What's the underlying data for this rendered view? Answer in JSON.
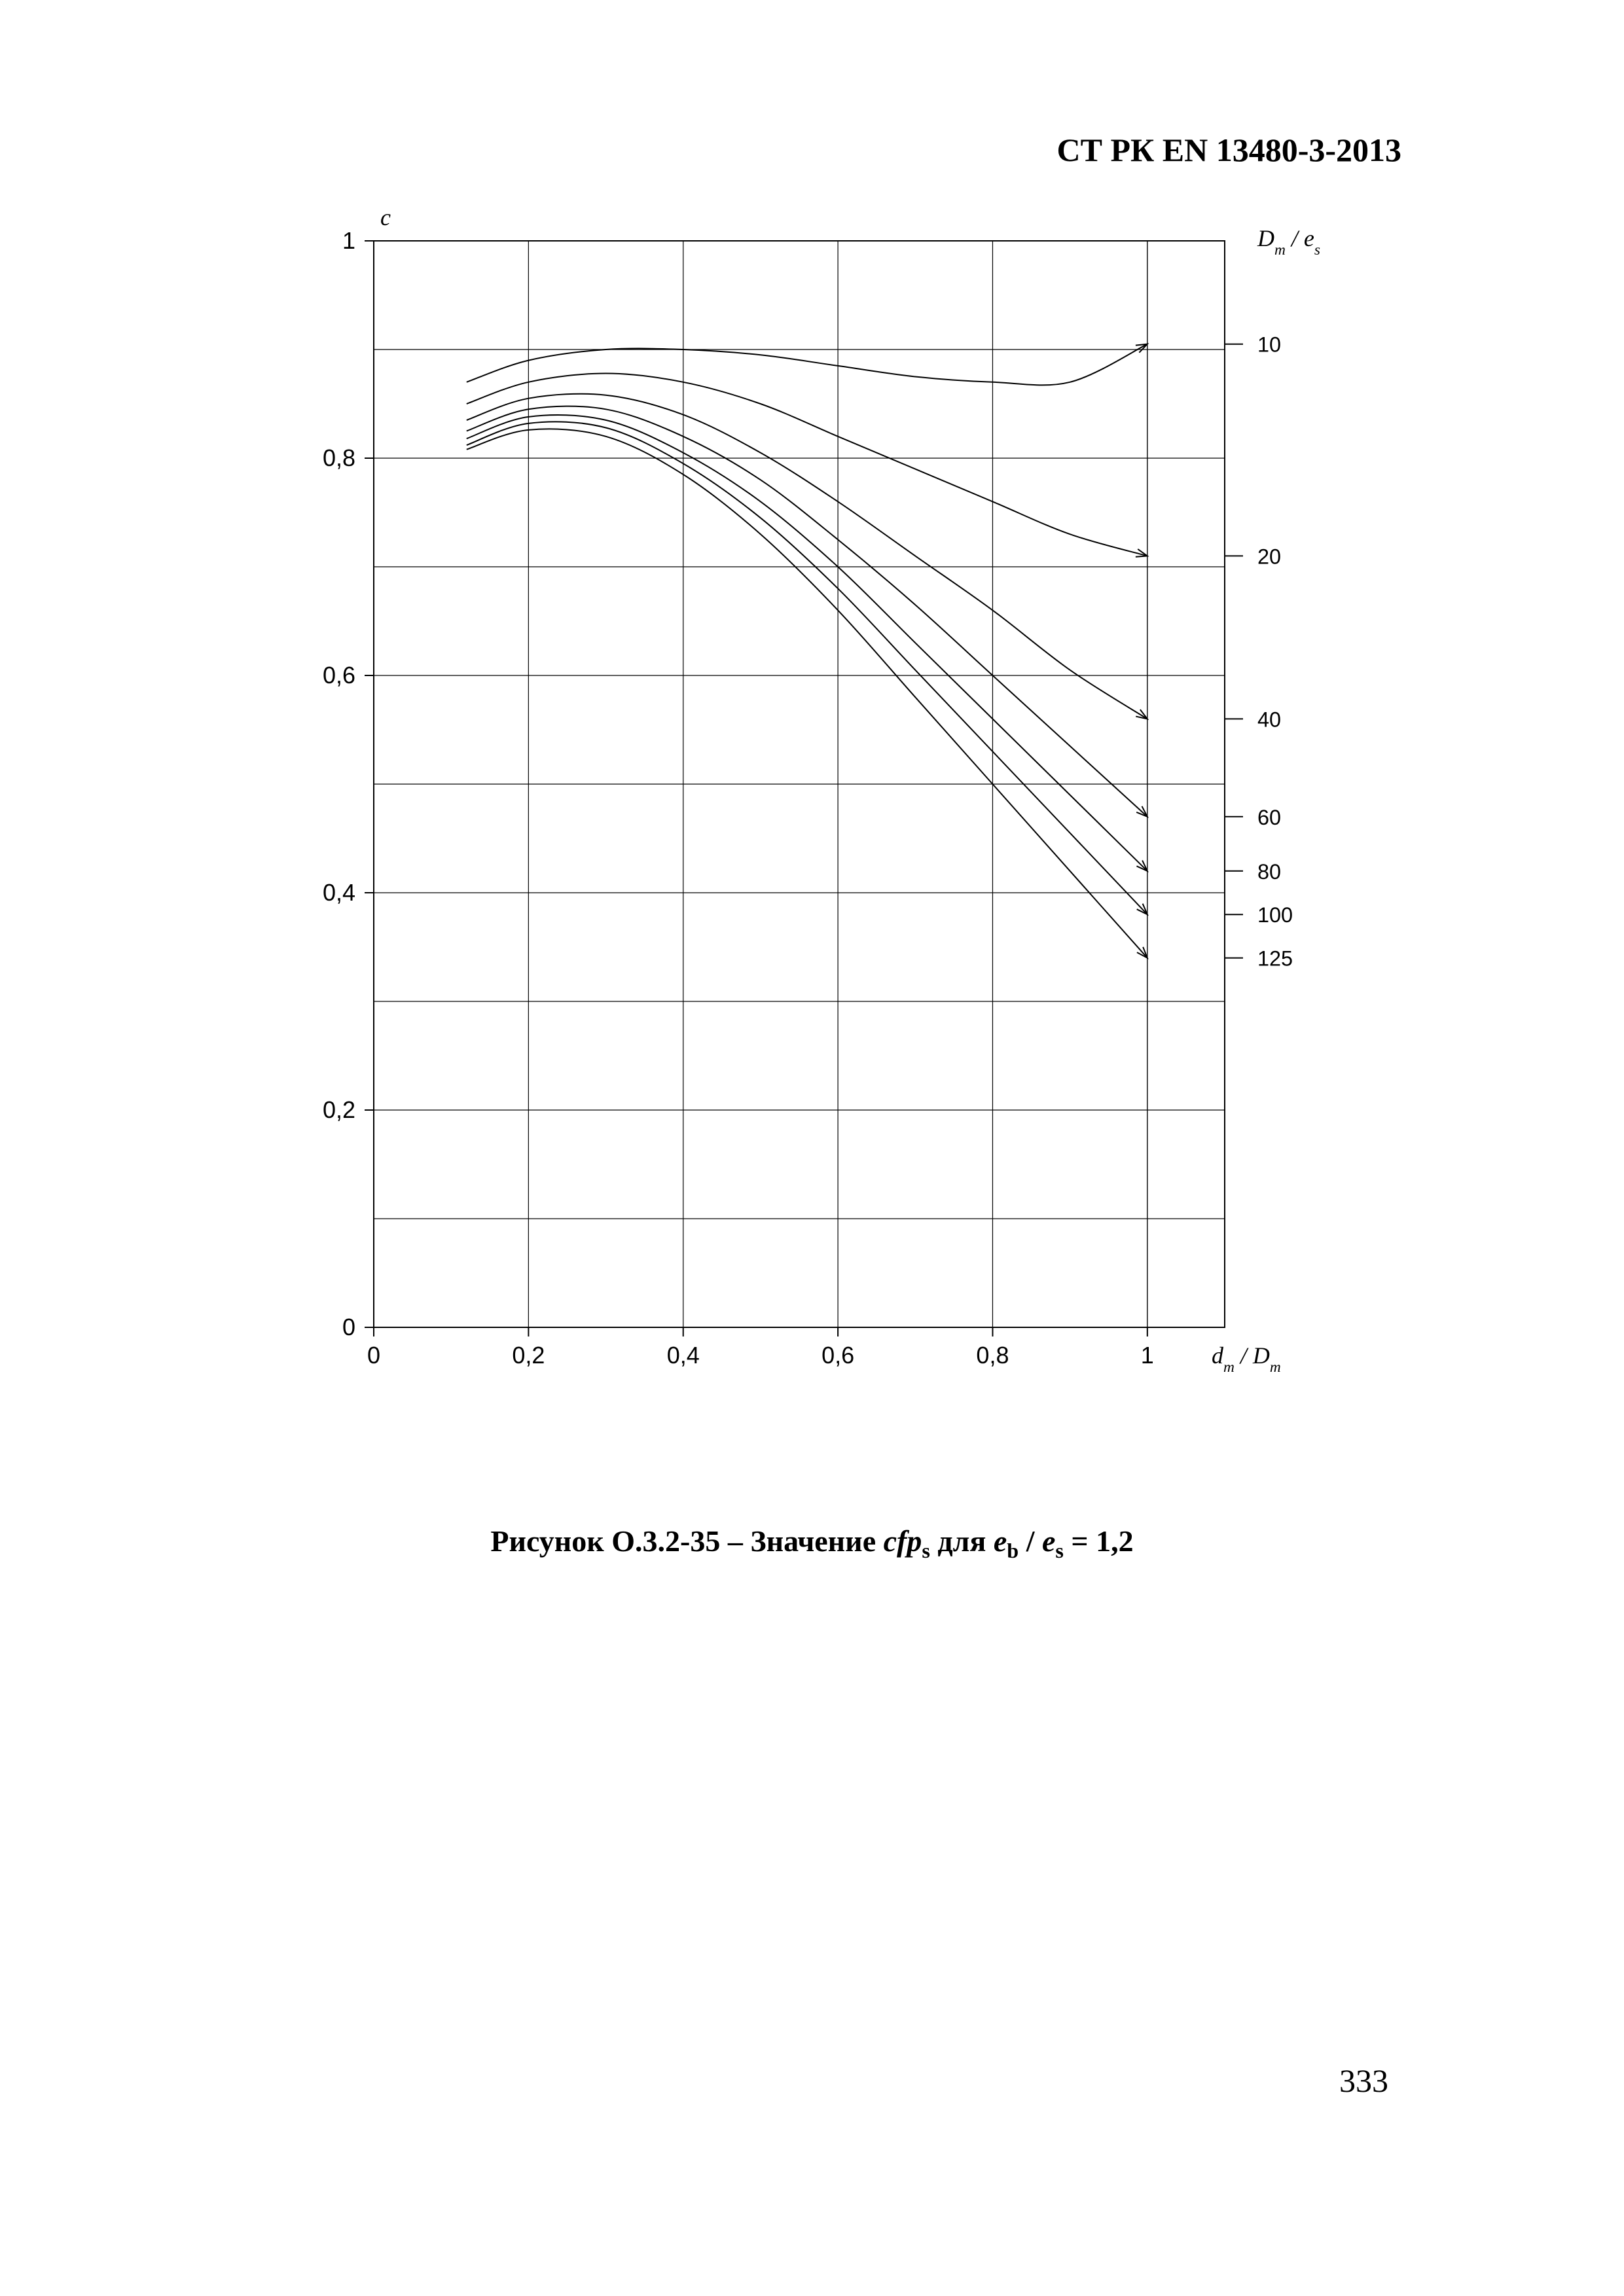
{
  "header": {
    "standard": "СТ РК EN 13480-3-2013"
  },
  "page_number": "333",
  "caption": {
    "prefix": "Рисунок O.3.2-35 – Значение ",
    "var_cfp": "cfp",
    "sub_s": "s",
    "mid": " для ",
    "var_e1": "e",
    "sub_b": "b",
    "slash": " / ",
    "var_e2": "e",
    "sub_s2": "s",
    "suffix": " = 1,2"
  },
  "chart": {
    "type": "line",
    "background_color": "#ffffff",
    "grid_color": "#000000",
    "line_color": "#000000",
    "axis_color": "#000000",
    "stroke_width": 2,
    "grid_stroke_width": 1.2,
    "tick_font_size": 36,
    "axis_title_font_size": 36,
    "x_axis": {
      "label_tex": "d_m / D_m",
      "min": 0,
      "max": 1.1,
      "xlim_draw_max": 1.1,
      "ticks": [
        0,
        0.2,
        0.4,
        0.6,
        0.8,
        1
      ],
      "tick_labels": [
        "0",
        "0,2",
        "0,4",
        "0,6",
        "0,8",
        "1"
      ]
    },
    "y_axis": {
      "label_tex": "c",
      "min": 0,
      "max": 1.0,
      "ticks": [
        0,
        0.2,
        0.4,
        0.6,
        0.8,
        1
      ],
      "tick_labels": [
        "0",
        "0,2",
        "0,4",
        "0,6",
        "0,8",
        "1"
      ]
    },
    "right_axis_label_tex": "D_m / e_s",
    "series_start_x": 0.12,
    "series": [
      {
        "label": "10",
        "label_y_at_end": 0.905,
        "points": [
          [
            0.12,
            0.87
          ],
          [
            0.2,
            0.89
          ],
          [
            0.3,
            0.9
          ],
          [
            0.4,
            0.9
          ],
          [
            0.5,
            0.895
          ],
          [
            0.6,
            0.885
          ],
          [
            0.7,
            0.875
          ],
          [
            0.8,
            0.87
          ],
          [
            0.9,
            0.87
          ],
          [
            1.0,
            0.905
          ]
        ]
      },
      {
        "label": "20",
        "label_y_at_end": 0.71,
        "points": [
          [
            0.12,
            0.85
          ],
          [
            0.2,
            0.87
          ],
          [
            0.3,
            0.878
          ],
          [
            0.4,
            0.87
          ],
          [
            0.5,
            0.85
          ],
          [
            0.6,
            0.82
          ],
          [
            0.7,
            0.79
          ],
          [
            0.8,
            0.76
          ],
          [
            0.9,
            0.73
          ],
          [
            1.0,
            0.71
          ]
        ]
      },
      {
        "label": "40",
        "label_y_at_end": 0.56,
        "points": [
          [
            0.12,
            0.835
          ],
          [
            0.2,
            0.855
          ],
          [
            0.3,
            0.858
          ],
          [
            0.4,
            0.84
          ],
          [
            0.5,
            0.805
          ],
          [
            0.6,
            0.76
          ],
          [
            0.7,
            0.71
          ],
          [
            0.8,
            0.66
          ],
          [
            0.9,
            0.605
          ],
          [
            1.0,
            0.56
          ]
        ]
      },
      {
        "label": "60",
        "label_y_at_end": 0.47,
        "points": [
          [
            0.12,
            0.825
          ],
          [
            0.2,
            0.845
          ],
          [
            0.3,
            0.845
          ],
          [
            0.4,
            0.82
          ],
          [
            0.5,
            0.78
          ],
          [
            0.6,
            0.725
          ],
          [
            0.7,
            0.665
          ],
          [
            0.8,
            0.6
          ],
          [
            0.9,
            0.535
          ],
          [
            1.0,
            0.47
          ]
        ]
      },
      {
        "label": "80",
        "label_y_at_end": 0.42,
        "points": [
          [
            0.12,
            0.818
          ],
          [
            0.2,
            0.838
          ],
          [
            0.3,
            0.835
          ],
          [
            0.4,
            0.805
          ],
          [
            0.5,
            0.76
          ],
          [
            0.6,
            0.7
          ],
          [
            0.7,
            0.63
          ],
          [
            0.8,
            0.56
          ],
          [
            0.9,
            0.49
          ],
          [
            1.0,
            0.42
          ]
        ]
      },
      {
        "label": "100",
        "label_y_at_end": 0.38,
        "points": [
          [
            0.12,
            0.812
          ],
          [
            0.2,
            0.832
          ],
          [
            0.3,
            0.828
          ],
          [
            0.4,
            0.795
          ],
          [
            0.5,
            0.745
          ],
          [
            0.6,
            0.68
          ],
          [
            0.7,
            0.605
          ],
          [
            0.8,
            0.53
          ],
          [
            0.9,
            0.455
          ],
          [
            1.0,
            0.38
          ]
        ]
      },
      {
        "label": "125",
        "label_y_at_end": 0.34,
        "points": [
          [
            0.12,
            0.808
          ],
          [
            0.2,
            0.826
          ],
          [
            0.3,
            0.82
          ],
          [
            0.4,
            0.785
          ],
          [
            0.5,
            0.73
          ],
          [
            0.6,
            0.66
          ],
          [
            0.7,
            0.58
          ],
          [
            0.8,
            0.5
          ],
          [
            0.9,
            0.42
          ],
          [
            1.0,
            0.34
          ]
        ]
      }
    ]
  }
}
